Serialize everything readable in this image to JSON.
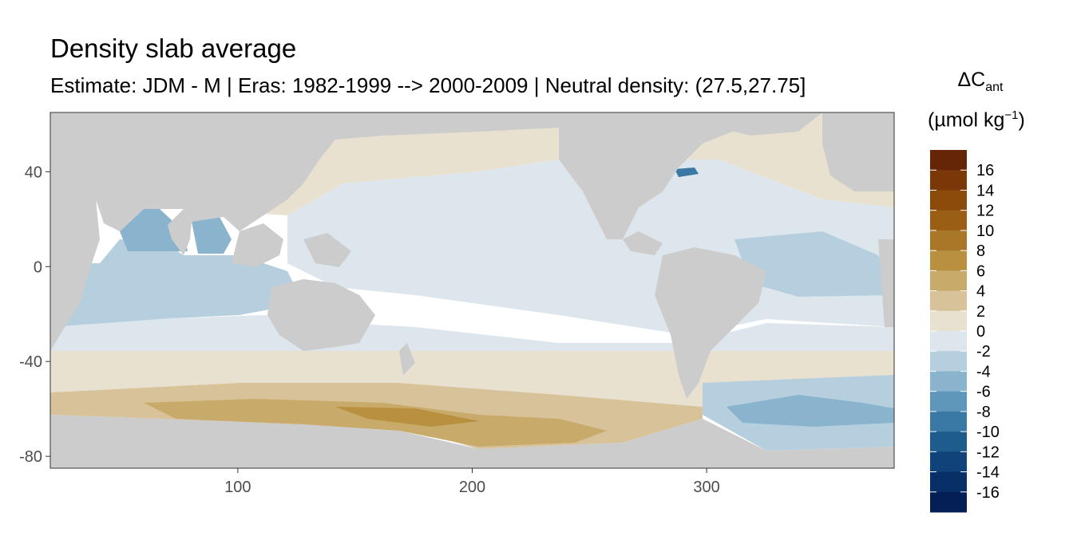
{
  "title": "Density slab average",
  "subtitle": "Estimate: JDM - M | Eras: 1982-1999 --> 2000-2009 | Neutral density: (27.5,27.75]",
  "legend": {
    "title_main": "ΔC",
    "title_sub": "ant",
    "unit_prefix": "(µmol kg",
    "unit_sup": "−1",
    "unit_suffix": ")",
    "labels": [
      "16",
      "14",
      "12",
      "10",
      "8",
      "6",
      "4",
      "2",
      "0",
      "-2",
      "-4",
      "-6",
      "-8",
      "-10",
      "-12",
      "-14",
      "-16"
    ],
    "colors": [
      "#662506",
      "#7b3708",
      "#8c4a0b",
      "#9a5e14",
      "#a87728",
      "#b8903f",
      "#c8aa6a",
      "#d8c29a",
      "#e9e1d0",
      "#dce6ec",
      "#b5cfde",
      "#8ab4cd",
      "#5f97ba",
      "#3a79a5",
      "#1f5c8e",
      "#0f437a",
      "#082f67",
      "#041f55"
    ]
  },
  "chart_data": {
    "type": "heatmap",
    "xlim": [
      20,
      380
    ],
    "ylim": [
      -85,
      65
    ],
    "x_ticks": [
      "100",
      "200",
      "300"
    ],
    "y_ticks": [
      "40",
      "0",
      "-40",
      "-80"
    ],
    "land_color": "#cccccc",
    "grid": false
  }
}
